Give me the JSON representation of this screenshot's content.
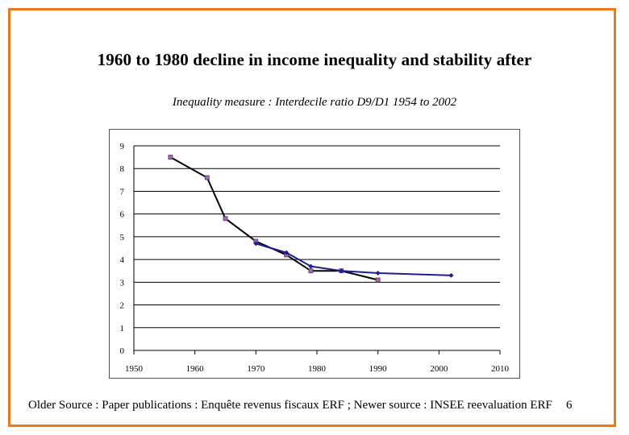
{
  "slide": {
    "title": "1960 to 1980 decline in income inequality and stability after",
    "subtitle": "Inequality measure : Interdecile ratio D9/D1 1954 to 2002",
    "footer": "Older Source : Paper publications : Enquête revenus fiscaux ERF ; Newer source : INSEE reevaluation ERF",
    "slide_number": "6"
  },
  "colors": {
    "frame": "#e87a1e",
    "series_old": "#000000",
    "series_new": "#1f1f8c",
    "marker_fill": "#a070b0"
  },
  "chart_data": {
    "type": "line",
    "title": "",
    "xlabel": "",
    "ylabel": "",
    "xlim": [
      1950,
      2010
    ],
    "ylim": [
      0,
      9
    ],
    "xticks": [
      1950,
      1960,
      1970,
      1980,
      1990,
      2000,
      2010
    ],
    "yticks": [
      0,
      1,
      2,
      3,
      4,
      5,
      6,
      7,
      8,
      9
    ],
    "grid": "horizontal",
    "legend": "none",
    "series": [
      {
        "x": [
          1956,
          1962,
          1965,
          1970,
          1975,
          1979,
          1984,
          1990
        ],
        "y": [
          8.5,
          7.6,
          5.8,
          4.8,
          4.2,
          3.5,
          3.5,
          3.1
        ]
      },
      {
        "x": [
          1970,
          1975,
          1979,
          1984,
          1990,
          2002
        ],
        "y": [
          4.7,
          4.3,
          3.7,
          3.5,
          3.4,
          3.3
        ]
      }
    ]
  }
}
